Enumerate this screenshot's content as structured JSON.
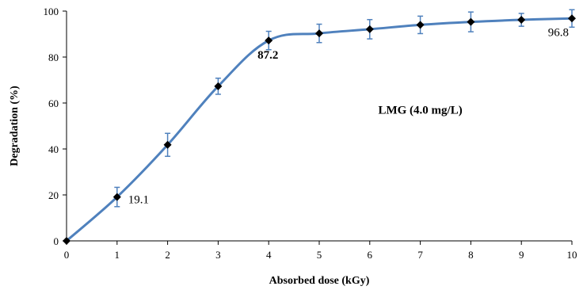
{
  "chart_data": {
    "type": "line",
    "title": "",
    "xlabel": "Absorbed dose (kGy)",
    "ylabel": "Degradation (%)",
    "xlim": [
      0,
      10
    ],
    "ylim": [
      0,
      100
    ],
    "x_ticks": [
      0,
      1,
      2,
      3,
      4,
      5,
      6,
      7,
      8,
      9,
      10
    ],
    "y_ticks": [
      0,
      20,
      40,
      60,
      80,
      100
    ],
    "grid": false,
    "legend": "none",
    "series": [
      {
        "x": [
          0,
          1,
          2,
          3,
          4,
          5,
          6,
          7,
          8,
          9,
          10
        ],
        "y": [
          0,
          19.1,
          41.8,
          67.3,
          87.2,
          90.3,
          92.1,
          94.0,
          95.3,
          96.2,
          96.8
        ],
        "error": [
          0,
          4.2,
          5.0,
          3.5,
          4.0,
          4.0,
          4.2,
          3.8,
          4.3,
          2.8,
          3.8
        ],
        "line_color": "#4f81bd",
        "marker_color": "#000000",
        "errorbar_color": "#4f81bd"
      }
    ],
    "annotations": [
      {
        "text": "19.1",
        "x": 1,
        "y": 19.1,
        "bold": false
      },
      {
        "text": "87.2",
        "x": 4,
        "y": 87.2,
        "bold": true
      },
      {
        "text": "96.8",
        "x": 10,
        "y": 96.8,
        "bold": false
      },
      {
        "text": "LMG (4.0 mg/L)",
        "x": 7.0,
        "y": 57,
        "bold": true
      }
    ]
  }
}
